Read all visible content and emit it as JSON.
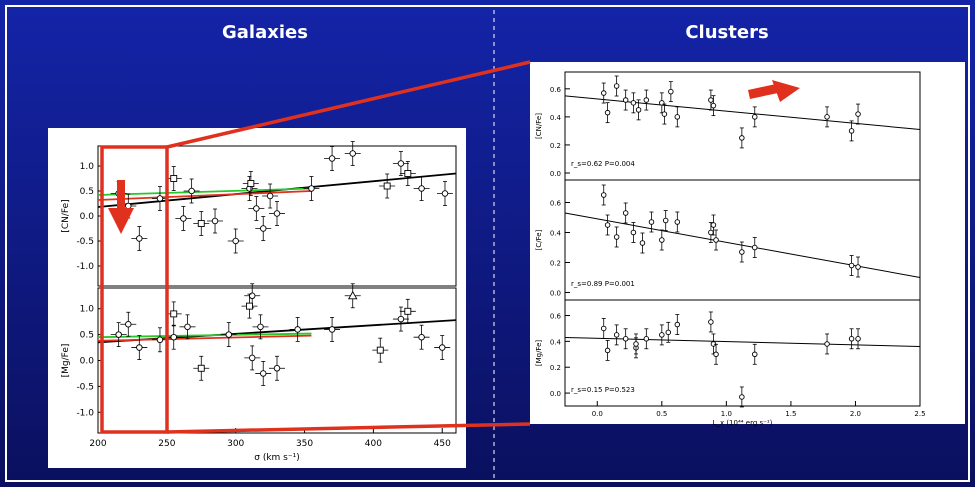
{
  "slide": {
    "left_heading": "Galaxies",
    "right_heading": "Clusters",
    "colors": {
      "bg_top": "#0b1a8f",
      "bg_bottom": "#0a0f5c",
      "accent_red": "#e0311f",
      "heading": "#ffffff"
    }
  },
  "chart_data": [
    {
      "id": "galaxies-cn",
      "type": "scatter",
      "title": "",
      "xlabel": "",
      "ylabel": "[CN/Fe]",
      "xlim": [
        200,
        460
      ],
      "ylim": [
        -1.4,
        1.4
      ],
      "yticks": [
        "-1.0",
        "-0.5",
        "0.0",
        "0.5",
        "1.0"
      ],
      "series": [
        {
          "marker": "circle",
          "points": [
            {
              "x": 215,
              "y": 0.45
            },
            {
              "x": 222,
              "y": 0.2
            },
            {
              "x": 230,
              "y": -0.45
            },
            {
              "x": 245,
              "y": 0.35
            },
            {
              "x": 262,
              "y": -0.05
            },
            {
              "x": 268,
              "y": 0.5
            },
            {
              "x": 285,
              "y": -0.1
            },
            {
              "x": 300,
              "y": -0.5
            },
            {
              "x": 310,
              "y": 0.55
            },
            {
              "x": 315,
              "y": 0.15
            },
            {
              "x": 320,
              "y": -0.25
            },
            {
              "x": 325,
              "y": 0.4
            },
            {
              "x": 330,
              "y": 0.05
            },
            {
              "x": 355,
              "y": 0.55
            },
            {
              "x": 370,
              "y": 1.15
            },
            {
              "x": 385,
              "y": 1.25
            },
            {
              "x": 420,
              "y": 1.05
            },
            {
              "x": 435,
              "y": 0.55
            },
            {
              "x": 452,
              "y": 0.45
            }
          ]
        },
        {
          "marker": "square",
          "points": [
            {
              "x": 255,
              "y": 0.75
            },
            {
              "x": 275,
              "y": -0.15
            },
            {
              "x": 311,
              "y": 0.65
            },
            {
              "x": 410,
              "y": 0.6
            },
            {
              "x": 425,
              "y": 0.85
            }
          ]
        }
      ],
      "fits": [
        {
          "color": "#000000",
          "from": [
            200,
            0.18
          ],
          "to": [
            460,
            0.85
          ]
        },
        {
          "color": "#28c828",
          "from": [
            200,
            0.42
          ],
          "to": [
            355,
            0.55
          ]
        },
        {
          "color": "#e0311f",
          "from": [
            200,
            0.32
          ],
          "to": [
            355,
            0.5
          ]
        }
      ]
    },
    {
      "id": "galaxies-mg",
      "type": "scatter",
      "title": "",
      "xlabel": "σ (km s⁻¹)",
      "ylabel": "[Mg/Fe]",
      "xlim": [
        200,
        460
      ],
      "ylim": [
        -1.4,
        1.4
      ],
      "xticks": [
        "200",
        "250",
        "300",
        "350",
        "400",
        "450"
      ],
      "yticks": [
        "-1.0",
        "-0.5",
        "0.0",
        "0.5",
        "1.0"
      ],
      "series": [
        {
          "marker": "circle",
          "points": [
            {
              "x": 215,
              "y": 0.5
            },
            {
              "x": 222,
              "y": 0.7
            },
            {
              "x": 230,
              "y": 0.25
            },
            {
              "x": 245,
              "y": 0.4
            },
            {
              "x": 255,
              "y": 0.45
            },
            {
              "x": 265,
              "y": 0.65
            },
            {
              "x": 295,
              "y": 0.5
            },
            {
              "x": 312,
              "y": 1.25
            },
            {
              "x": 318,
              "y": 0.65
            },
            {
              "x": 312,
              "y": 0.05
            },
            {
              "x": 320,
              "y": -0.25
            },
            {
              "x": 330,
              "y": -0.15
            },
            {
              "x": 345,
              "y": 0.6
            },
            {
              "x": 370,
              "y": 0.6
            },
            {
              "x": 420,
              "y": 0.8
            },
            {
              "x": 435,
              "y": 0.45
            },
            {
              "x": 450,
              "y": 0.25
            }
          ]
        },
        {
          "marker": "square",
          "points": [
            {
              "x": 255,
              "y": 0.9
            },
            {
              "x": 275,
              "y": -0.15
            },
            {
              "x": 310,
              "y": 1.05
            },
            {
              "x": 405,
              "y": 0.2
            },
            {
              "x": 425,
              "y": 0.95
            }
          ]
        },
        {
          "marker": "triangle",
          "points": [
            {
              "x": 385,
              "y": 1.25
            }
          ]
        }
      ],
      "fits": [
        {
          "color": "#000000",
          "from": [
            200,
            0.35
          ],
          "to": [
            460,
            0.78
          ]
        },
        {
          "color": "#28c828",
          "from": [
            200,
            0.45
          ],
          "to": [
            355,
            0.52
          ]
        },
        {
          "color": "#e0311f",
          "from": [
            200,
            0.38
          ],
          "to": [
            355,
            0.48
          ]
        }
      ]
    },
    {
      "id": "clusters-cn",
      "type": "scatter",
      "title": "",
      "xlabel": "",
      "ylabel": "[CN/Fe]",
      "xlim": [
        -0.25,
        2.5
      ],
      "ylim": [
        -0.05,
        0.72
      ],
      "yticks": [
        "0.0",
        "0.2",
        "0.4",
        "0.6"
      ],
      "annotation": "r_s=0.62    P=0.004",
      "series": [
        {
          "marker": "circle",
          "points": [
            {
              "x": 0.05,
              "y": 0.57
            },
            {
              "x": 0.08,
              "y": 0.43
            },
            {
              "x": 0.15,
              "y": 0.62
            },
            {
              "x": 0.22,
              "y": 0.52
            },
            {
              "x": 0.28,
              "y": 0.5
            },
            {
              "x": 0.32,
              "y": 0.45
            },
            {
              "x": 0.38,
              "y": 0.52
            },
            {
              "x": 0.5,
              "y": 0.5
            },
            {
              "x": 0.52,
              "y": 0.42
            },
            {
              "x": 0.57,
              "y": 0.58
            },
            {
              "x": 0.62,
              "y": 0.4
            },
            {
              "x": 0.88,
              "y": 0.52
            },
            {
              "x": 0.9,
              "y": 0.48
            },
            {
              "x": 1.12,
              "y": 0.25
            },
            {
              "x": 1.22,
              "y": 0.4
            },
            {
              "x": 1.78,
              "y": 0.4
            },
            {
              "x": 1.97,
              "y": 0.3
            },
            {
              "x": 2.02,
              "y": 0.42
            }
          ]
        }
      ],
      "fits": [
        {
          "color": "#000000",
          "from": [
            -0.25,
            0.55
          ],
          "to": [
            2.5,
            0.31
          ]
        }
      ]
    },
    {
      "id": "clusters-c",
      "type": "scatter",
      "title": "",
      "xlabel": "",
      "ylabel": "[C/Fe]",
      "xlim": [
        -0.25,
        2.5
      ],
      "ylim": [
        -0.05,
        0.75
      ],
      "yticks": [
        "0.0",
        "0.2",
        "0.4",
        "0.6"
      ],
      "annotation": "r_s=0.89    P=0.001",
      "series": [
        {
          "marker": "circle",
          "points": [
            {
              "x": 0.05,
              "y": 0.65
            },
            {
              "x": 0.08,
              "y": 0.45
            },
            {
              "x": 0.15,
              "y": 0.37
            },
            {
              "x": 0.22,
              "y": 0.53
            },
            {
              "x": 0.28,
              "y": 0.4
            },
            {
              "x": 0.35,
              "y": 0.33
            },
            {
              "x": 0.42,
              "y": 0.47
            },
            {
              "x": 0.5,
              "y": 0.35
            },
            {
              "x": 0.53,
              "y": 0.48
            },
            {
              "x": 0.62,
              "y": 0.47
            },
            {
              "x": 0.88,
              "y": 0.4
            },
            {
              "x": 0.9,
              "y": 0.45
            },
            {
              "x": 0.92,
              "y": 0.35
            },
            {
              "x": 1.12,
              "y": 0.27
            },
            {
              "x": 1.22,
              "y": 0.3
            },
            {
              "x": 1.97,
              "y": 0.18
            },
            {
              "x": 2.02,
              "y": 0.17
            }
          ]
        }
      ],
      "fits": [
        {
          "color": "#000000",
          "from": [
            -0.25,
            0.53
          ],
          "to": [
            2.5,
            0.1
          ]
        }
      ]
    },
    {
      "id": "clusters-mg",
      "type": "scatter",
      "title": "",
      "xlabel": "L_x (10⁴⁴ erg s⁻¹)",
      "ylabel": "[Mg/Fe]",
      "xlim": [
        -0.25,
        2.5
      ],
      "ylim": [
        -0.1,
        0.72
      ],
      "xticks": [
        "0.0",
        "0.5",
        "1.0",
        "1.5",
        "2.0",
        "2.5"
      ],
      "yticks": [
        "0.0",
        "0.2",
        "0.4",
        "0.6"
      ],
      "annotation": "r_s=0.15    P=0.523",
      "series": [
        {
          "marker": "circle",
          "points": [
            {
              "x": 0.05,
              "y": 0.5
            },
            {
              "x": 0.08,
              "y": 0.33
            },
            {
              "x": 0.15,
              "y": 0.45
            },
            {
              "x": 0.22,
              "y": 0.42
            },
            {
              "x": 0.3,
              "y": 0.35
            },
            {
              "x": 0.3,
              "y": 0.38
            },
            {
              "x": 0.38,
              "y": 0.42
            },
            {
              "x": 0.5,
              "y": 0.45
            },
            {
              "x": 0.55,
              "y": 0.47
            },
            {
              "x": 0.62,
              "y": 0.53
            },
            {
              "x": 0.88,
              "y": 0.55
            },
            {
              "x": 0.9,
              "y": 0.38
            },
            {
              "x": 0.92,
              "y": 0.3
            },
            {
              "x": 1.12,
              "y": -0.03
            },
            {
              "x": 1.22,
              "y": 0.3
            },
            {
              "x": 1.78,
              "y": 0.38
            },
            {
              "x": 1.97,
              "y": 0.42
            },
            {
              "x": 2.02,
              "y": 0.42
            }
          ]
        }
      ],
      "fits": [
        {
          "color": "#000000",
          "from": [
            -0.25,
            0.43
          ],
          "to": [
            2.5,
            0.36
          ]
        }
      ]
    }
  ]
}
